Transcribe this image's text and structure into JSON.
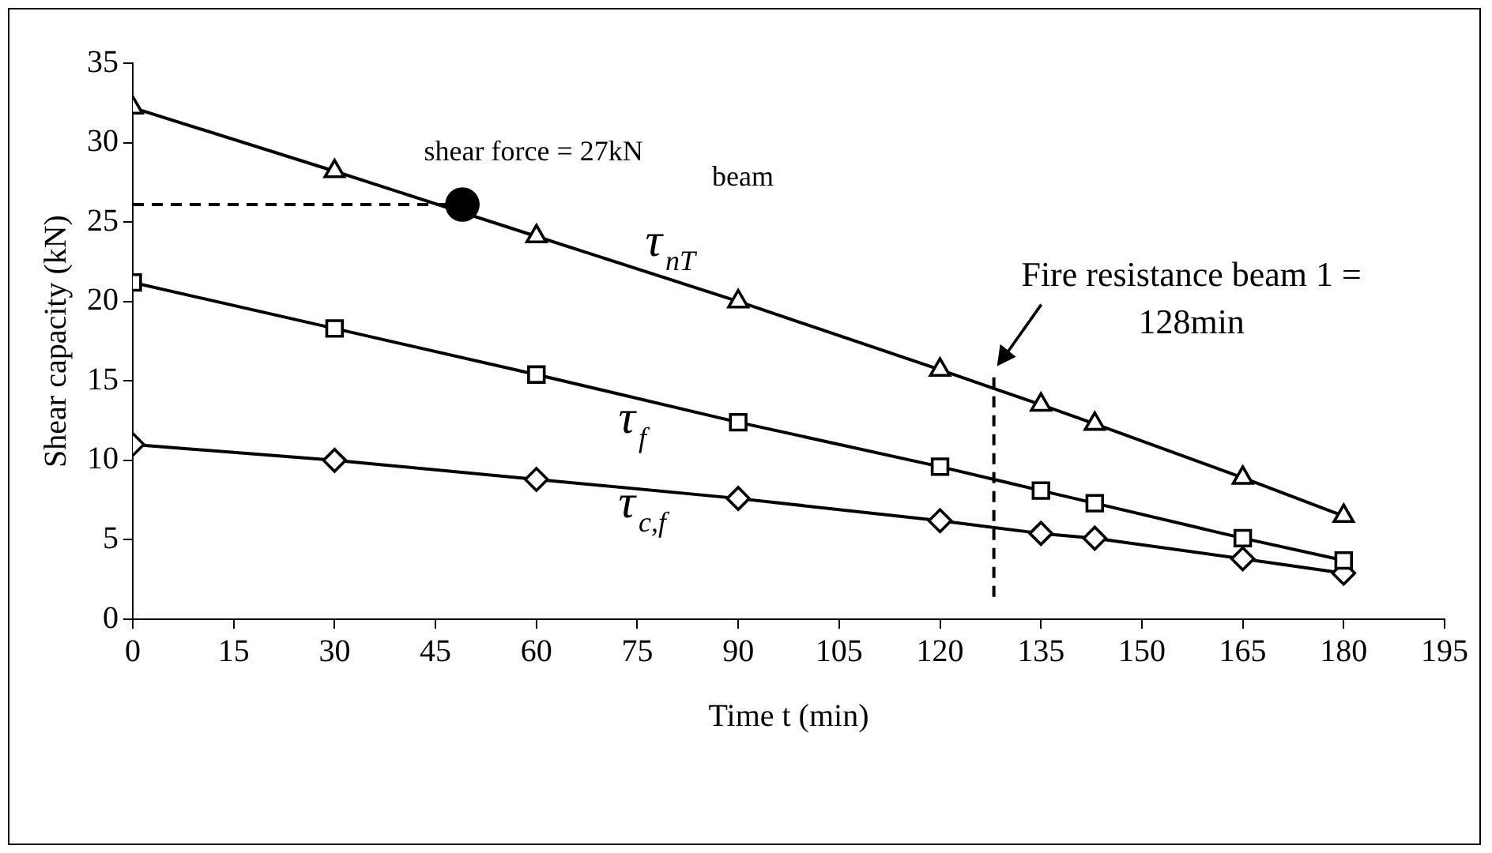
{
  "chart_data": {
    "type": "line",
    "xlabel": "Time t (min)",
    "ylabel": "Shear capacity (kN)",
    "xlim": [
      0,
      195
    ],
    "xticks": [
      0,
      15,
      30,
      45,
      60,
      75,
      90,
      105,
      120,
      135,
      150,
      165,
      180,
      195
    ],
    "ylim": [
      0,
      35
    ],
    "yticks": [
      0,
      5,
      10,
      15,
      20,
      25,
      30,
      35
    ],
    "grid": false,
    "legend": false,
    "series": [
      {
        "name": "τ$_{nT}$",
        "color": "#000000",
        "marker": "triangle",
        "x": [
          0,
          30,
          60,
          90,
          120,
          135,
          143,
          165,
          180
        ],
        "values": [
          32.2,
          28.2,
          24.1,
          20,
          15.7,
          13.5,
          12.3,
          8.9,
          6.5
        ]
      },
      {
        "name": "τ$_{f}$",
        "color": "#000000",
        "marker": "square",
        "x": [
          0,
          30,
          60,
          90,
          120,
          135,
          143,
          165,
          180
        ],
        "values": [
          21.2,
          18.3,
          15.4,
          12.4,
          9.6,
          8.1,
          7.3,
          5.1,
          3.7
        ]
      },
      {
        "name": "τ$_{c,f}$",
        "color": "#000000",
        "marker": "diamond",
        "x": [
          0,
          30,
          60,
          90,
          120,
          135,
          143,
          165,
          180
        ],
        "values": [
          11,
          10,
          8.8,
          7.6,
          6.2,
          5.4,
          5.1,
          3.8,
          2.9
        ]
      },
      {
        "type": "line",
        "color": "#000000",
        "marker": "none",
        "line_style": "dashed",
        "x": [
          0,
          49
        ],
        "values": [
          26.1,
          26.1
        ]
      },
      {
        "type": "scatter",
        "color": "#000000",
        "marker": "circle",
        "x": [
          49
        ],
        "values": [
          26.1
        ]
      }
    ],
    "ref_lines": [
      {
        "axis": "x",
        "value": 128,
        "label": "Fire resistance beam 1 = 128min",
        "line_style": "dashed",
        "color": "#000000"
      }
    ],
    "annotations": [
      {
        "text": "shear force = 27kN",
        "x": 49,
        "y": 26.1
      },
      "beam"
    ]
  }
}
